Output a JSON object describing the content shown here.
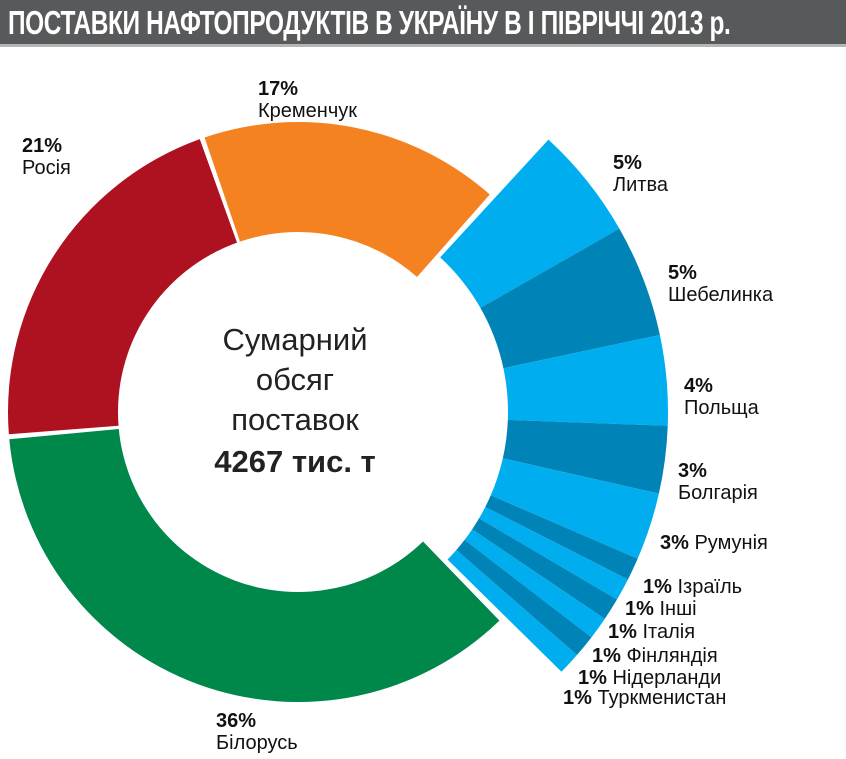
{
  "title": "ПОСТАВКИ НАФТОПРОДУКТІВ В УКРАЇНУ В І ПІВРІЧЧІ 2013 р.",
  "center": {
    "line1": "Сумарний",
    "line2": "обсяг",
    "line3": "поставок",
    "total": "4267 тис. т"
  },
  "chart_data": {
    "type": "pie",
    "subtype": "donut",
    "title": "ПОСТАВКИ НАФТОПРОДУКТІВ В УКРАЇНУ В І ПІВРІЧЧІ 2013 р.",
    "total": "4267 тис. т",
    "unit": "%",
    "slices": [
      {
        "name": "Литва",
        "value": 5,
        "label": "5%",
        "color": "#00aeef",
        "group": "exploded"
      },
      {
        "name": "Шебелинка",
        "value": 5,
        "label": "5%",
        "color": "#0083b7",
        "group": "exploded"
      },
      {
        "name": "Польща",
        "value": 4,
        "label": "4%",
        "color": "#00aeef",
        "group": "exploded"
      },
      {
        "name": "Болгарія",
        "value": 3,
        "label": "3%",
        "color": "#0083b7",
        "group": "exploded"
      },
      {
        "name": "Румунія",
        "value": 3,
        "label": "3%",
        "color": "#00aeef",
        "group": "exploded"
      },
      {
        "name": "Ізраїль",
        "value": 1,
        "label": "1%",
        "color": "#0083b7",
        "group": "exploded"
      },
      {
        "name": "Інші",
        "value": 1,
        "label": "1%",
        "color": "#00aeef",
        "group": "exploded"
      },
      {
        "name": "Італія",
        "value": 1,
        "label": "1%",
        "color": "#0083b7",
        "group": "exploded"
      },
      {
        "name": "Фінляндія",
        "value": 1,
        "label": "1%",
        "color": "#00aeef",
        "group": "exploded"
      },
      {
        "name": "Нідерланди",
        "value": 1,
        "label": "1%",
        "color": "#0083b7",
        "group": "exploded"
      },
      {
        "name": "Туркменистан",
        "value": 1,
        "label": "1%",
        "color": "#00aeef",
        "group": "exploded"
      },
      {
        "name": "Білорусь",
        "value": 36,
        "label": "36%",
        "color": "#00874a",
        "group": "main"
      },
      {
        "name": "Росія",
        "value": 21,
        "label": "21%",
        "color": "#ae1120",
        "group": "main"
      },
      {
        "name": "Кременчук",
        "value": 17,
        "label": "17%",
        "color": "#f58220",
        "group": "main"
      }
    ]
  }
}
